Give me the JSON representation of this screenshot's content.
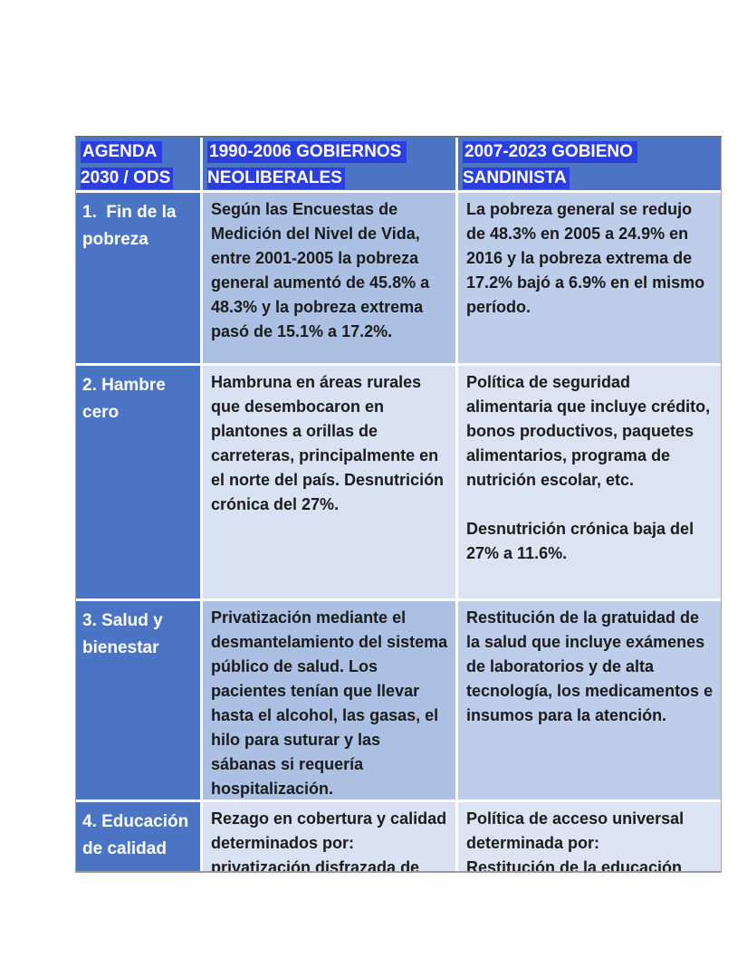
{
  "colors": {
    "header_bg": "#4B74C5",
    "header_highlight": "#2B3EE0",
    "col1_bg": "#4B74C5",
    "col2_band_a": "#ABC0E3",
    "col3_band_a": "#BDCDEA",
    "col2_band_b": "#D9E2F3",
    "col3_band_b": "#DCE4F3",
    "body_text": "#1B1B1B"
  },
  "table": {
    "header": {
      "col1": "AGENDA 2030 / ODS",
      "col2": "1990-2006 GOBIERNOS NEOLIBERALES",
      "col3": "2007-2023 GOBIENO SANDINISTA"
    },
    "rows": [
      {
        "goal": "1.  Fin de la pobreza",
        "neoliberal": "Según las Encuestas de Medición del Nivel de Vida, entre 2001-2005 la pobreza general aumentó de 45.8% a 48.3% y la pobreza extrema pasó de 15.1% a 17.2%.",
        "sandinista": "La pobreza general se redujo de 48.3% en 2005 a 24.9% en 2016 y la pobreza extrema de 17.2% bajó a 6.9% en el mismo período."
      },
      {
        "goal": "2. Hambre cero",
        "neoliberal": "Hambruna en áreas rurales que desembocaron en plantones a orillas de carreteras, principalmente en el norte del país. Desnutrición crónica del 27%.",
        "sandinista": "Política de seguridad alimentaria que incluye crédito, bonos productivos, paquetes alimentarios, programa de nutrición escolar, etc.\n\nDesnutrición crónica baja del 27% a 11.6%."
      },
      {
        "goal": "3. Salud y bienestar",
        "neoliberal": "Privatización mediante el desmantelamiento del sistema público de salud. Los pacientes tenían que llevar hasta el alcohol, las gasas, el hilo para suturar y las sábanas si requería hospitalización.",
        "sandinista": "Restitución de la gratuidad de la salud que incluye exámenes de laboratorios y de alta tecnología, los medicamentos e insumos para la atención."
      },
      {
        "goal": "4. Educación de calidad",
        "neoliberal": "Rezago en cobertura y calidad determinados por: privatización disfrazada de",
        "sandinista": "Política de acceso universal determinada por:\nRestitución de la educación"
      }
    ]
  }
}
